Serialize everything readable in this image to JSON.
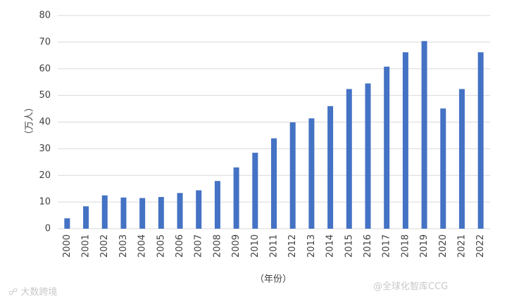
{
  "chart_data": {
    "type": "bar",
    "categories": [
      "2000",
      "2001",
      "2002",
      "2003",
      "2004",
      "2005",
      "2006",
      "2007",
      "2008",
      "2009",
      "2010",
      "2011",
      "2012",
      "2013",
      "2014",
      "2015",
      "2016",
      "2017",
      "2018",
      "2019",
      "2020",
      "2021",
      "2022"
    ],
    "values": [
      3.9,
      8.4,
      12.5,
      11.7,
      11.5,
      11.9,
      13.4,
      14.4,
      17.9,
      23.0,
      28.5,
      33.9,
      39.9,
      41.4,
      46.0,
      52.4,
      54.5,
      60.8,
      66.2,
      70.4,
      45.1,
      52.4,
      66.2
    ],
    "xlabel": "（年份）",
    "ylabel": "（万人）",
    "ylim": [
      0,
      80
    ],
    "yticks": [
      0,
      10,
      20,
      30,
      40,
      50,
      60,
      70,
      80
    ],
    "grid": true,
    "bar_color": "#4472c4"
  },
  "watermarks": {
    "left": "大数跨境",
    "right": "@全球化智库CCG"
  }
}
